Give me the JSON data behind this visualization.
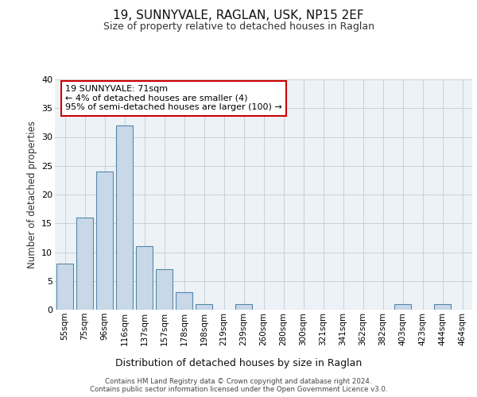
{
  "title1": "19, SUNNYVALE, RAGLAN, USK, NP15 2EF",
  "title2": "Size of property relative to detached houses in Raglan",
  "xlabel": "Distribution of detached houses by size in Raglan",
  "ylabel": "Number of detached properties",
  "categories": [
    "55sqm",
    "75sqm",
    "96sqm",
    "116sqm",
    "137sqm",
    "157sqm",
    "178sqm",
    "198sqm",
    "219sqm",
    "239sqm",
    "260sqm",
    "280sqm",
    "300sqm",
    "321sqm",
    "341sqm",
    "362sqm",
    "382sqm",
    "403sqm",
    "423sqm",
    "444sqm",
    "464sqm"
  ],
  "values": [
    8,
    16,
    24,
    32,
    11,
    7,
    3,
    1,
    0,
    1,
    0,
    0,
    0,
    0,
    0,
    0,
    0,
    1,
    0,
    1,
    0
  ],
  "bar_color": "#c8d8e8",
  "bar_edge_color": "#5588aa",
  "annotation_text": "19 SUNNYVALE: 71sqm\n← 4% of detached houses are smaller (4)\n95% of semi-detached houses are larger (100) →",
  "annotation_box_color": "#ffffff",
  "annotation_border_color": "#cc0000",
  "grid_color": "#c8d0d8",
  "background_color": "#edf2f7",
  "footer_text": "Contains HM Land Registry data © Crown copyright and database right 2024.\nContains public sector information licensed under the Open Government Licence v3.0.",
  "ylim": [
    0,
    40
  ],
  "yticks": [
    0,
    5,
    10,
    15,
    20,
    25,
    30,
    35,
    40
  ]
}
